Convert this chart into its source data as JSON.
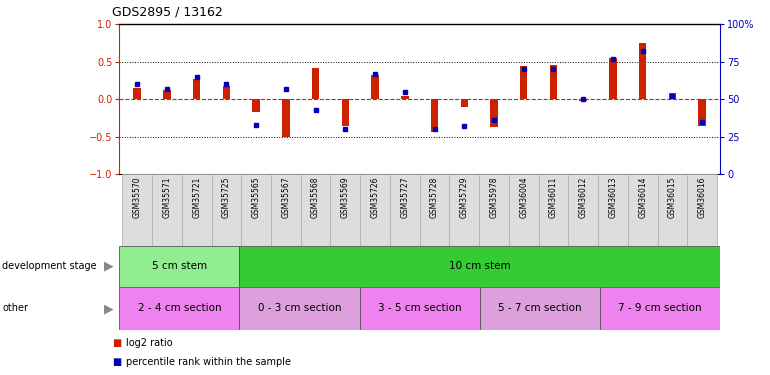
{
  "title": "GDS2895 / 13162",
  "samples": [
    "GSM35570",
    "GSM35571",
    "GSM35721",
    "GSM35725",
    "GSM35565",
    "GSM35567",
    "GSM35568",
    "GSM35569",
    "GSM35726",
    "GSM35727",
    "GSM35728",
    "GSM35729",
    "GSM35978",
    "GSM36004",
    "GSM36011",
    "GSM36012",
    "GSM36013",
    "GSM36014",
    "GSM36015",
    "GSM36016"
  ],
  "log2_ratio": [
    0.15,
    0.13,
    0.27,
    0.18,
    -0.17,
    -0.5,
    0.42,
    -0.35,
    0.33,
    0.05,
    -0.43,
    -0.1,
    -0.37,
    0.44,
    0.46,
    -0.02,
    0.55,
    0.75,
    0.08,
    -0.35
  ],
  "percentile": [
    60,
    57,
    65,
    60,
    33,
    57,
    43,
    30,
    67,
    55,
    30,
    32,
    36,
    70,
    70,
    50,
    77,
    82,
    52,
    35
  ],
  "dev_stage_groups": [
    {
      "label": "5 cm stem",
      "start": 0,
      "end": 4,
      "color": "#90EE90"
    },
    {
      "label": "10 cm stem",
      "start": 4,
      "end": 20,
      "color": "#33CC33"
    }
  ],
  "other_groups": [
    {
      "label": "2 - 4 cm section",
      "start": 0,
      "end": 4,
      "color": "#EE82EE"
    },
    {
      "label": "0 - 3 cm section",
      "start": 4,
      "end": 8,
      "color": "#DDA0DD"
    },
    {
      "label": "3 - 5 cm section",
      "start": 8,
      "end": 12,
      "color": "#EE82EE"
    },
    {
      "label": "5 - 7 cm section",
      "start": 12,
      "end": 16,
      "color": "#DDA0DD"
    },
    {
      "label": "7 - 9 cm section",
      "start": 16,
      "end": 20,
      "color": "#EE82EE"
    }
  ],
  "bar_color": "#CC2200",
  "dot_color": "#0000BB",
  "ylim": [
    -1,
    1
  ],
  "y2lim": [
    0,
    100
  ],
  "yticks": [
    -1,
    -0.5,
    0,
    0.5,
    1
  ],
  "y2ticks": [
    0,
    25,
    50,
    75,
    100
  ],
  "hline_color": "#CC2200",
  "bg_color": "#FFFFFF"
}
